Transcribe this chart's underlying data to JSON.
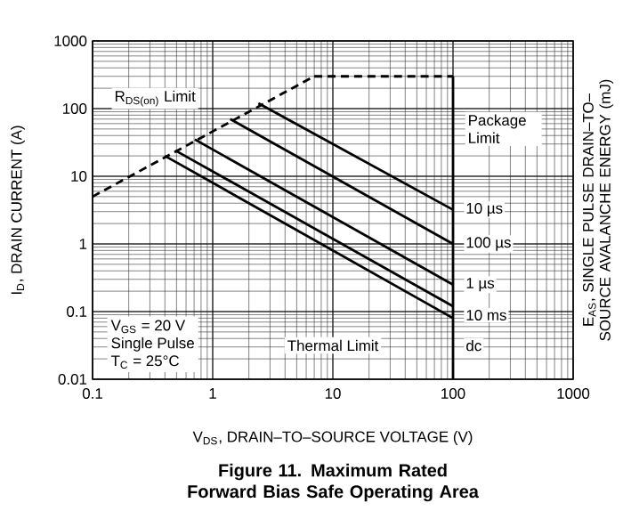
{
  "chart_data": {
    "type": "line",
    "title": "Figure 11. Maximum Rated Forward Bias Safe Operating Area",
    "xlabel": "V$_{DS}$, DRAIN–TO–SOURCE VOLTAGE (V)",
    "ylabel": "I$_{D}$, DRAIN CURRENT (A)",
    "y2label": "E$_{AS}$, SINGLE PULSE DRAIN–TO–SOURCE AVALANCHE ENERGY (mJ)",
    "log": "xy",
    "grid": true,
    "xlim": [
      0.1,
      1000
    ],
    "xticks": [
      0.1,
      1,
      10,
      100,
      1000
    ],
    "ylim": [
      0.01,
      1000
    ],
    "yticks": [
      0.01,
      0.1,
      1,
      10,
      100,
      1000
    ],
    "series": [
      {
        "color": "#000000",
        "line_style": "dashed",
        "x": [
          0.1,
          7
        ],
        "values": [
          5,
          300
        ]
      },
      {
        "color": "#000000",
        "line_style": "dashed",
        "x": [
          7,
          100
        ],
        "values": [
          300,
          300
        ]
      },
      {
        "color": "#000000",
        "line_style": "solid",
        "x": [
          100,
          100
        ],
        "values": [
          300,
          0.01
        ]
      },
      {
        "name": "10 µs",
        "color": "#000000",
        "line_style": "solid",
        "x": [
          2.4,
          100
        ],
        "values": [
          120,
          3.2
        ]
      },
      {
        "name": "100 µs",
        "color": "#000000",
        "line_style": "solid",
        "x": [
          1.4,
          100
        ],
        "values": [
          70,
          1.0
        ]
      },
      {
        "name": "1 µs",
        "color": "#000000",
        "line_style": "solid",
        "x": [
          0.71,
          100
        ],
        "values": [
          35,
          0.25
        ]
      },
      {
        "name": "10 ms",
        "color": "#000000",
        "line_style": "solid",
        "x": [
          0.49,
          100
        ],
        "values": [
          24,
          0.12
        ]
      },
      {
        "name": "dc",
        "color": "#000000",
        "line_style": "solid",
        "x": [
          0.4,
          100
        ],
        "values": [
          20,
          0.08
        ]
      }
    ],
    "annotations": [
      "R$_{DS(on)}$ Limit",
      "Package Limit",
      "Thermal Limit",
      "V$_{GS}$ = 20 V",
      "Single Pulse",
      "T$_{C}$ = 25°C"
    ]
  }
}
